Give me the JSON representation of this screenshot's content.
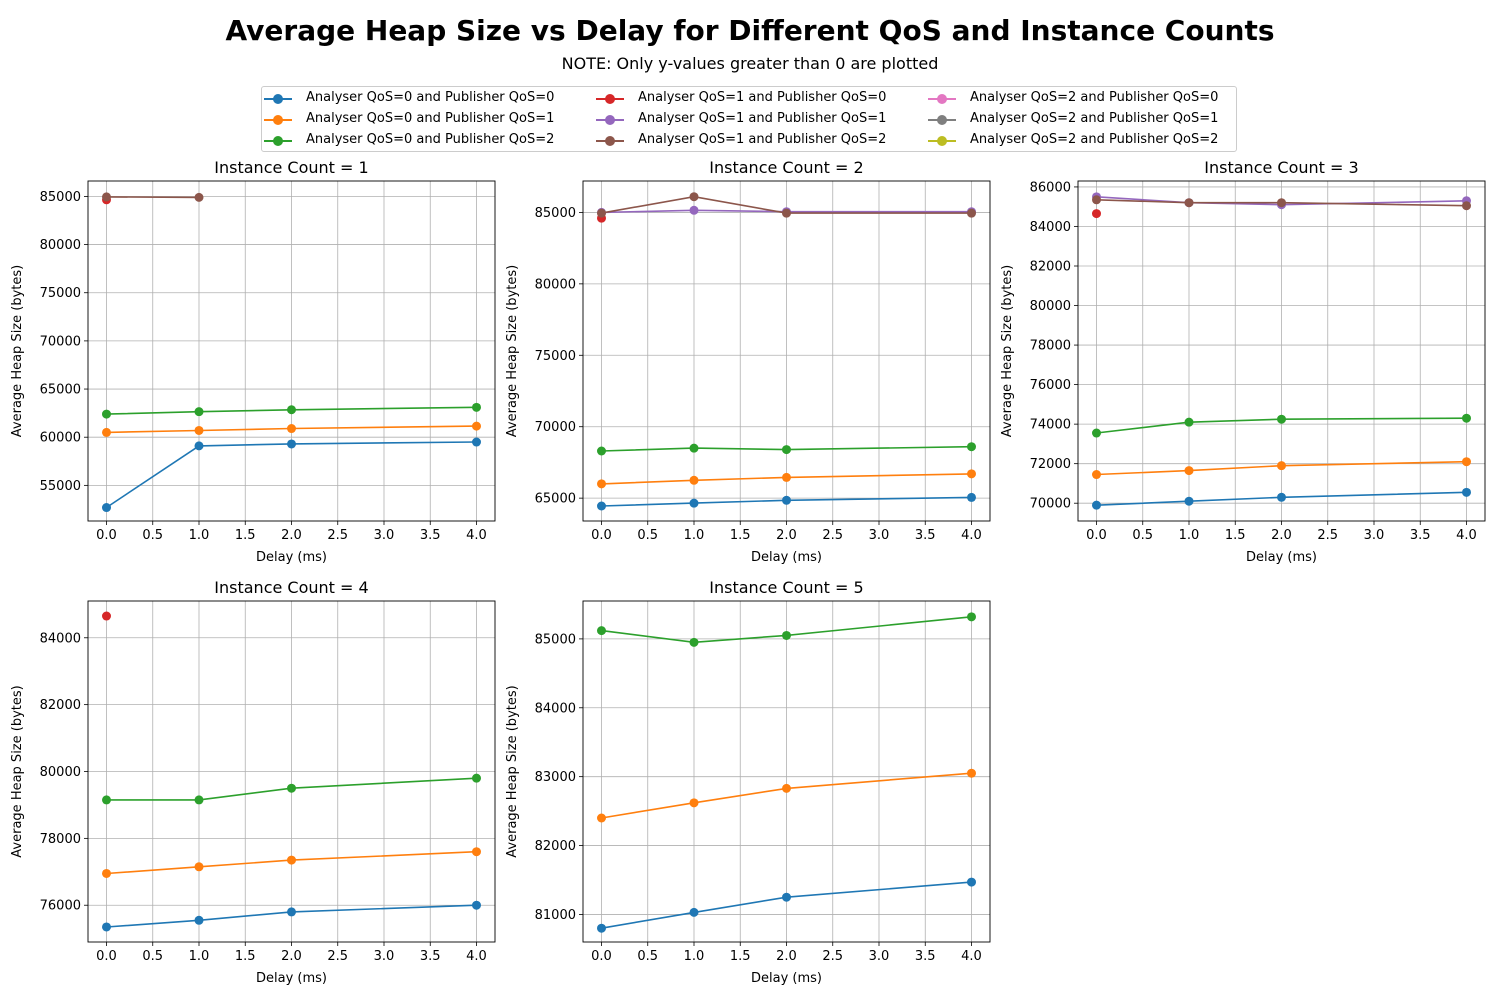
{
  "title": "Average Heap Size vs Delay for Different QoS and Instance Counts",
  "subtitle": "NOTE: Only y-values greater than 0 are plotted",
  "legend": [
    {
      "name": "Analyser QoS=0 and Publisher QoS=0",
      "color": "#1f77b4"
    },
    {
      "name": "Analyser QoS=0 and Publisher QoS=1",
      "color": "#ff7f0e"
    },
    {
      "name": "Analyser QoS=0 and Publisher QoS=2",
      "color": "#2ca02c"
    },
    {
      "name": "Analyser QoS=1 and Publisher QoS=0",
      "color": "#d62728"
    },
    {
      "name": "Analyser QoS=1 and Publisher QoS=1",
      "color": "#9467bd"
    },
    {
      "name": "Analyser QoS=1 and Publisher QoS=2",
      "color": "#8c564b"
    },
    {
      "name": "Analyser QoS=2 and Publisher QoS=0",
      "color": "#e377c2"
    },
    {
      "name": "Analyser QoS=2 and Publisher QoS=1",
      "color": "#7f7f7f"
    },
    {
      "name": "Analyser QoS=2 and Publisher QoS=2",
      "color": "#bcbd22"
    }
  ],
  "chart_data": [
    {
      "type": "line",
      "title": "Instance Count = 1",
      "xlabel": "Delay (ms)",
      "ylabel": "Average Heap Size (bytes)",
      "xlim": [
        -0.2,
        4.2
      ],
      "ylim": [
        51300,
        86600
      ],
      "xticks": [
        0,
        0.5,
        1,
        1.5,
        2,
        2.5,
        3,
        3.5,
        4
      ],
      "xtick_labels": [
        "0.0",
        "0.5",
        "1.0",
        "1.5",
        "2.0",
        "2.5",
        "3.0",
        "3.5",
        "4.0"
      ],
      "yticks": [
        55000,
        60000,
        65000,
        70000,
        75000,
        80000,
        85000
      ],
      "ytick_labels": [
        "55000",
        "60000",
        "65000",
        "70000",
        "75000",
        "80000",
        "85000"
      ],
      "grid": true,
      "series": [
        {
          "name": "Analyser QoS=0 and Publisher QoS=0",
          "color": "#1f77b4",
          "x": [
            0,
            1,
            2,
            4
          ],
          "y": [
            52700,
            59100,
            59300,
            59500
          ]
        },
        {
          "name": "Analyser QoS=0 and Publisher QoS=1",
          "color": "#ff7f0e",
          "x": [
            0,
            1,
            2,
            4
          ],
          "y": [
            60500,
            60700,
            60900,
            61150
          ]
        },
        {
          "name": "Analyser QoS=0 and Publisher QoS=2",
          "color": "#2ca02c",
          "x": [
            0,
            1,
            2,
            4
          ],
          "y": [
            62400,
            62650,
            62850,
            63100
          ]
        },
        {
          "name": "Analyser QoS=1 and Publisher QoS=0",
          "color": "#d62728",
          "x": [
            0
          ],
          "y": [
            84650
          ]
        },
        {
          "name": "Analyser QoS=1 and Publisher QoS=2",
          "color": "#8c564b",
          "x": [
            0,
            1
          ],
          "y": [
            84950,
            84900
          ]
        }
      ]
    },
    {
      "type": "line",
      "title": "Instance Count = 2",
      "xlabel": "Delay (ms)",
      "ylabel": "Average Heap Size (bytes)",
      "xlim": [
        -0.2,
        4.2
      ],
      "ylim": [
        63400,
        87200
      ],
      "xticks": [
        0,
        0.5,
        1,
        1.5,
        2,
        2.5,
        3,
        3.5,
        4
      ],
      "xtick_labels": [
        "0.0",
        "0.5",
        "1.0",
        "1.5",
        "2.0",
        "2.5",
        "3.0",
        "3.5",
        "4.0"
      ],
      "yticks": [
        65000,
        70000,
        75000,
        80000,
        85000
      ],
      "ytick_labels": [
        "65000",
        "70000",
        "75000",
        "80000",
        "85000"
      ],
      "grid": true,
      "series": [
        {
          "name": "Analyser QoS=0 and Publisher QoS=0",
          "color": "#1f77b4",
          "x": [
            0,
            1,
            2,
            4
          ],
          "y": [
            64450,
            64650,
            64850,
            65050
          ]
        },
        {
          "name": "Analyser QoS=0 and Publisher QoS=1",
          "color": "#ff7f0e",
          "x": [
            0,
            1,
            2,
            4
          ],
          "y": [
            66000,
            66250,
            66450,
            66700
          ]
        },
        {
          "name": "Analyser QoS=0 and Publisher QoS=2",
          "color": "#2ca02c",
          "x": [
            0,
            1,
            2,
            4
          ],
          "y": [
            68300,
            68500,
            68400,
            68600
          ]
        },
        {
          "name": "Analyser QoS=1 and Publisher QoS=0",
          "color": "#d62728",
          "x": [
            0
          ],
          "y": [
            84600
          ]
        },
        {
          "name": "Analyser QoS=1 and Publisher QoS=1",
          "color": "#9467bd",
          "x": [
            0,
            1,
            2,
            4
          ],
          "y": [
            85000,
            85150,
            85050,
            85050
          ]
        },
        {
          "name": "Analyser QoS=1 and Publisher QoS=2",
          "color": "#8c564b",
          "x": [
            0,
            1,
            2,
            4
          ],
          "y": [
            84950,
            86100,
            84950,
            84950
          ]
        }
      ]
    },
    {
      "type": "line",
      "title": "Instance Count = 3",
      "xlabel": "Delay (ms)",
      "ylabel": "Average Heap Size (bytes)",
      "xlim": [
        -0.2,
        4.2
      ],
      "ylim": [
        69100,
        86300
      ],
      "xticks": [
        0,
        0.5,
        1,
        1.5,
        2,
        2.5,
        3,
        3.5,
        4
      ],
      "xtick_labels": [
        "0.0",
        "0.5",
        "1.0",
        "1.5",
        "2.0",
        "2.5",
        "3.0",
        "3.5",
        "4.0"
      ],
      "yticks": [
        70000,
        72000,
        74000,
        76000,
        78000,
        80000,
        82000,
        84000,
        86000
      ],
      "ytick_labels": [
        "70000",
        "72000",
        "74000",
        "76000",
        "78000",
        "80000",
        "82000",
        "84000",
        "86000"
      ],
      "grid": true,
      "series": [
        {
          "name": "Analyser QoS=0 and Publisher QoS=0",
          "color": "#1f77b4",
          "x": [
            0,
            1,
            2,
            4
          ],
          "y": [
            69900,
            70100,
            70300,
            70550
          ]
        },
        {
          "name": "Analyser QoS=0 and Publisher QoS=1",
          "color": "#ff7f0e",
          "x": [
            0,
            1,
            2,
            4
          ],
          "y": [
            71450,
            71650,
            71900,
            72100
          ]
        },
        {
          "name": "Analyser QoS=0 and Publisher QoS=2",
          "color": "#2ca02c",
          "x": [
            0,
            1,
            2,
            4
          ],
          "y": [
            73550,
            74100,
            74250,
            74300
          ]
        },
        {
          "name": "Analyser QoS=1 and Publisher QoS=0",
          "color": "#d62728",
          "x": [
            0
          ],
          "y": [
            84650
          ]
        },
        {
          "name": "Analyser QoS=1 and Publisher QoS=1",
          "color": "#9467bd",
          "x": [
            0,
            1,
            2,
            4
          ],
          "y": [
            85500,
            85200,
            85100,
            85300
          ]
        },
        {
          "name": "Analyser QoS=1 and Publisher QoS=2",
          "color": "#8c564b",
          "x": [
            0,
            1,
            2,
            4
          ],
          "y": [
            85350,
            85200,
            85200,
            85050
          ]
        }
      ]
    },
    {
      "type": "line",
      "title": "Instance Count = 4",
      "xlabel": "Delay (ms)",
      "ylabel": "Average Heap Size (bytes)",
      "xlim": [
        -0.2,
        4.2
      ],
      "ylim": [
        74900,
        85100
      ],
      "xticks": [
        0,
        0.5,
        1,
        1.5,
        2,
        2.5,
        3,
        3.5,
        4
      ],
      "xtick_labels": [
        "0.0",
        "0.5",
        "1.0",
        "1.5",
        "2.0",
        "2.5",
        "3.0",
        "3.5",
        "4.0"
      ],
      "yticks": [
        76000,
        78000,
        80000,
        82000,
        84000
      ],
      "ytick_labels": [
        "76000",
        "78000",
        "80000",
        "82000",
        "84000"
      ],
      "grid": true,
      "series": [
        {
          "name": "Analyser QoS=0 and Publisher QoS=0",
          "color": "#1f77b4",
          "x": [
            0,
            1,
            2,
            4
          ],
          "y": [
            75350,
            75550,
            75800,
            76000
          ]
        },
        {
          "name": "Analyser QoS=0 and Publisher QoS=1",
          "color": "#ff7f0e",
          "x": [
            0,
            1,
            2,
            4
          ],
          "y": [
            76950,
            77150,
            77350,
            77600
          ]
        },
        {
          "name": "Analyser QoS=0 and Publisher QoS=2",
          "color": "#2ca02c",
          "x": [
            0,
            1,
            2,
            4
          ],
          "y": [
            79150,
            79150,
            79500,
            79800
          ]
        },
        {
          "name": "Analyser QoS=1 and Publisher QoS=0",
          "color": "#d62728",
          "x": [
            0
          ],
          "y": [
            84650
          ]
        }
      ]
    },
    {
      "type": "line",
      "title": "Instance Count = 5",
      "xlabel": "Delay (ms)",
      "ylabel": "Average Heap Size (bytes)",
      "xlim": [
        -0.2,
        4.2
      ],
      "ylim": [
        80600,
        85550
      ],
      "xticks": [
        0,
        0.5,
        1,
        1.5,
        2,
        2.5,
        3,
        3.5,
        4
      ],
      "xtick_labels": [
        "0.0",
        "0.5",
        "1.0",
        "1.5",
        "2.0",
        "2.5",
        "3.0",
        "3.5",
        "4.0"
      ],
      "yticks": [
        81000,
        82000,
        83000,
        84000,
        85000
      ],
      "ytick_labels": [
        "81000",
        "82000",
        "83000",
        "84000",
        "85000"
      ],
      "grid": true,
      "series": [
        {
          "name": "Analyser QoS=0 and Publisher QoS=0",
          "color": "#1f77b4",
          "x": [
            0,
            1,
            2,
            4
          ],
          "y": [
            80800,
            81030,
            81250,
            81470
          ]
        },
        {
          "name": "Analyser QoS=0 and Publisher QoS=1",
          "color": "#ff7f0e",
          "x": [
            0,
            1,
            2,
            4
          ],
          "y": [
            82400,
            82620,
            82830,
            83050
          ]
        },
        {
          "name": "Analyser QoS=0 and Publisher QoS=2",
          "color": "#2ca02c",
          "x": [
            0,
            1,
            2,
            4
          ],
          "y": [
            85120,
            84950,
            85050,
            85320
          ]
        }
      ]
    }
  ]
}
